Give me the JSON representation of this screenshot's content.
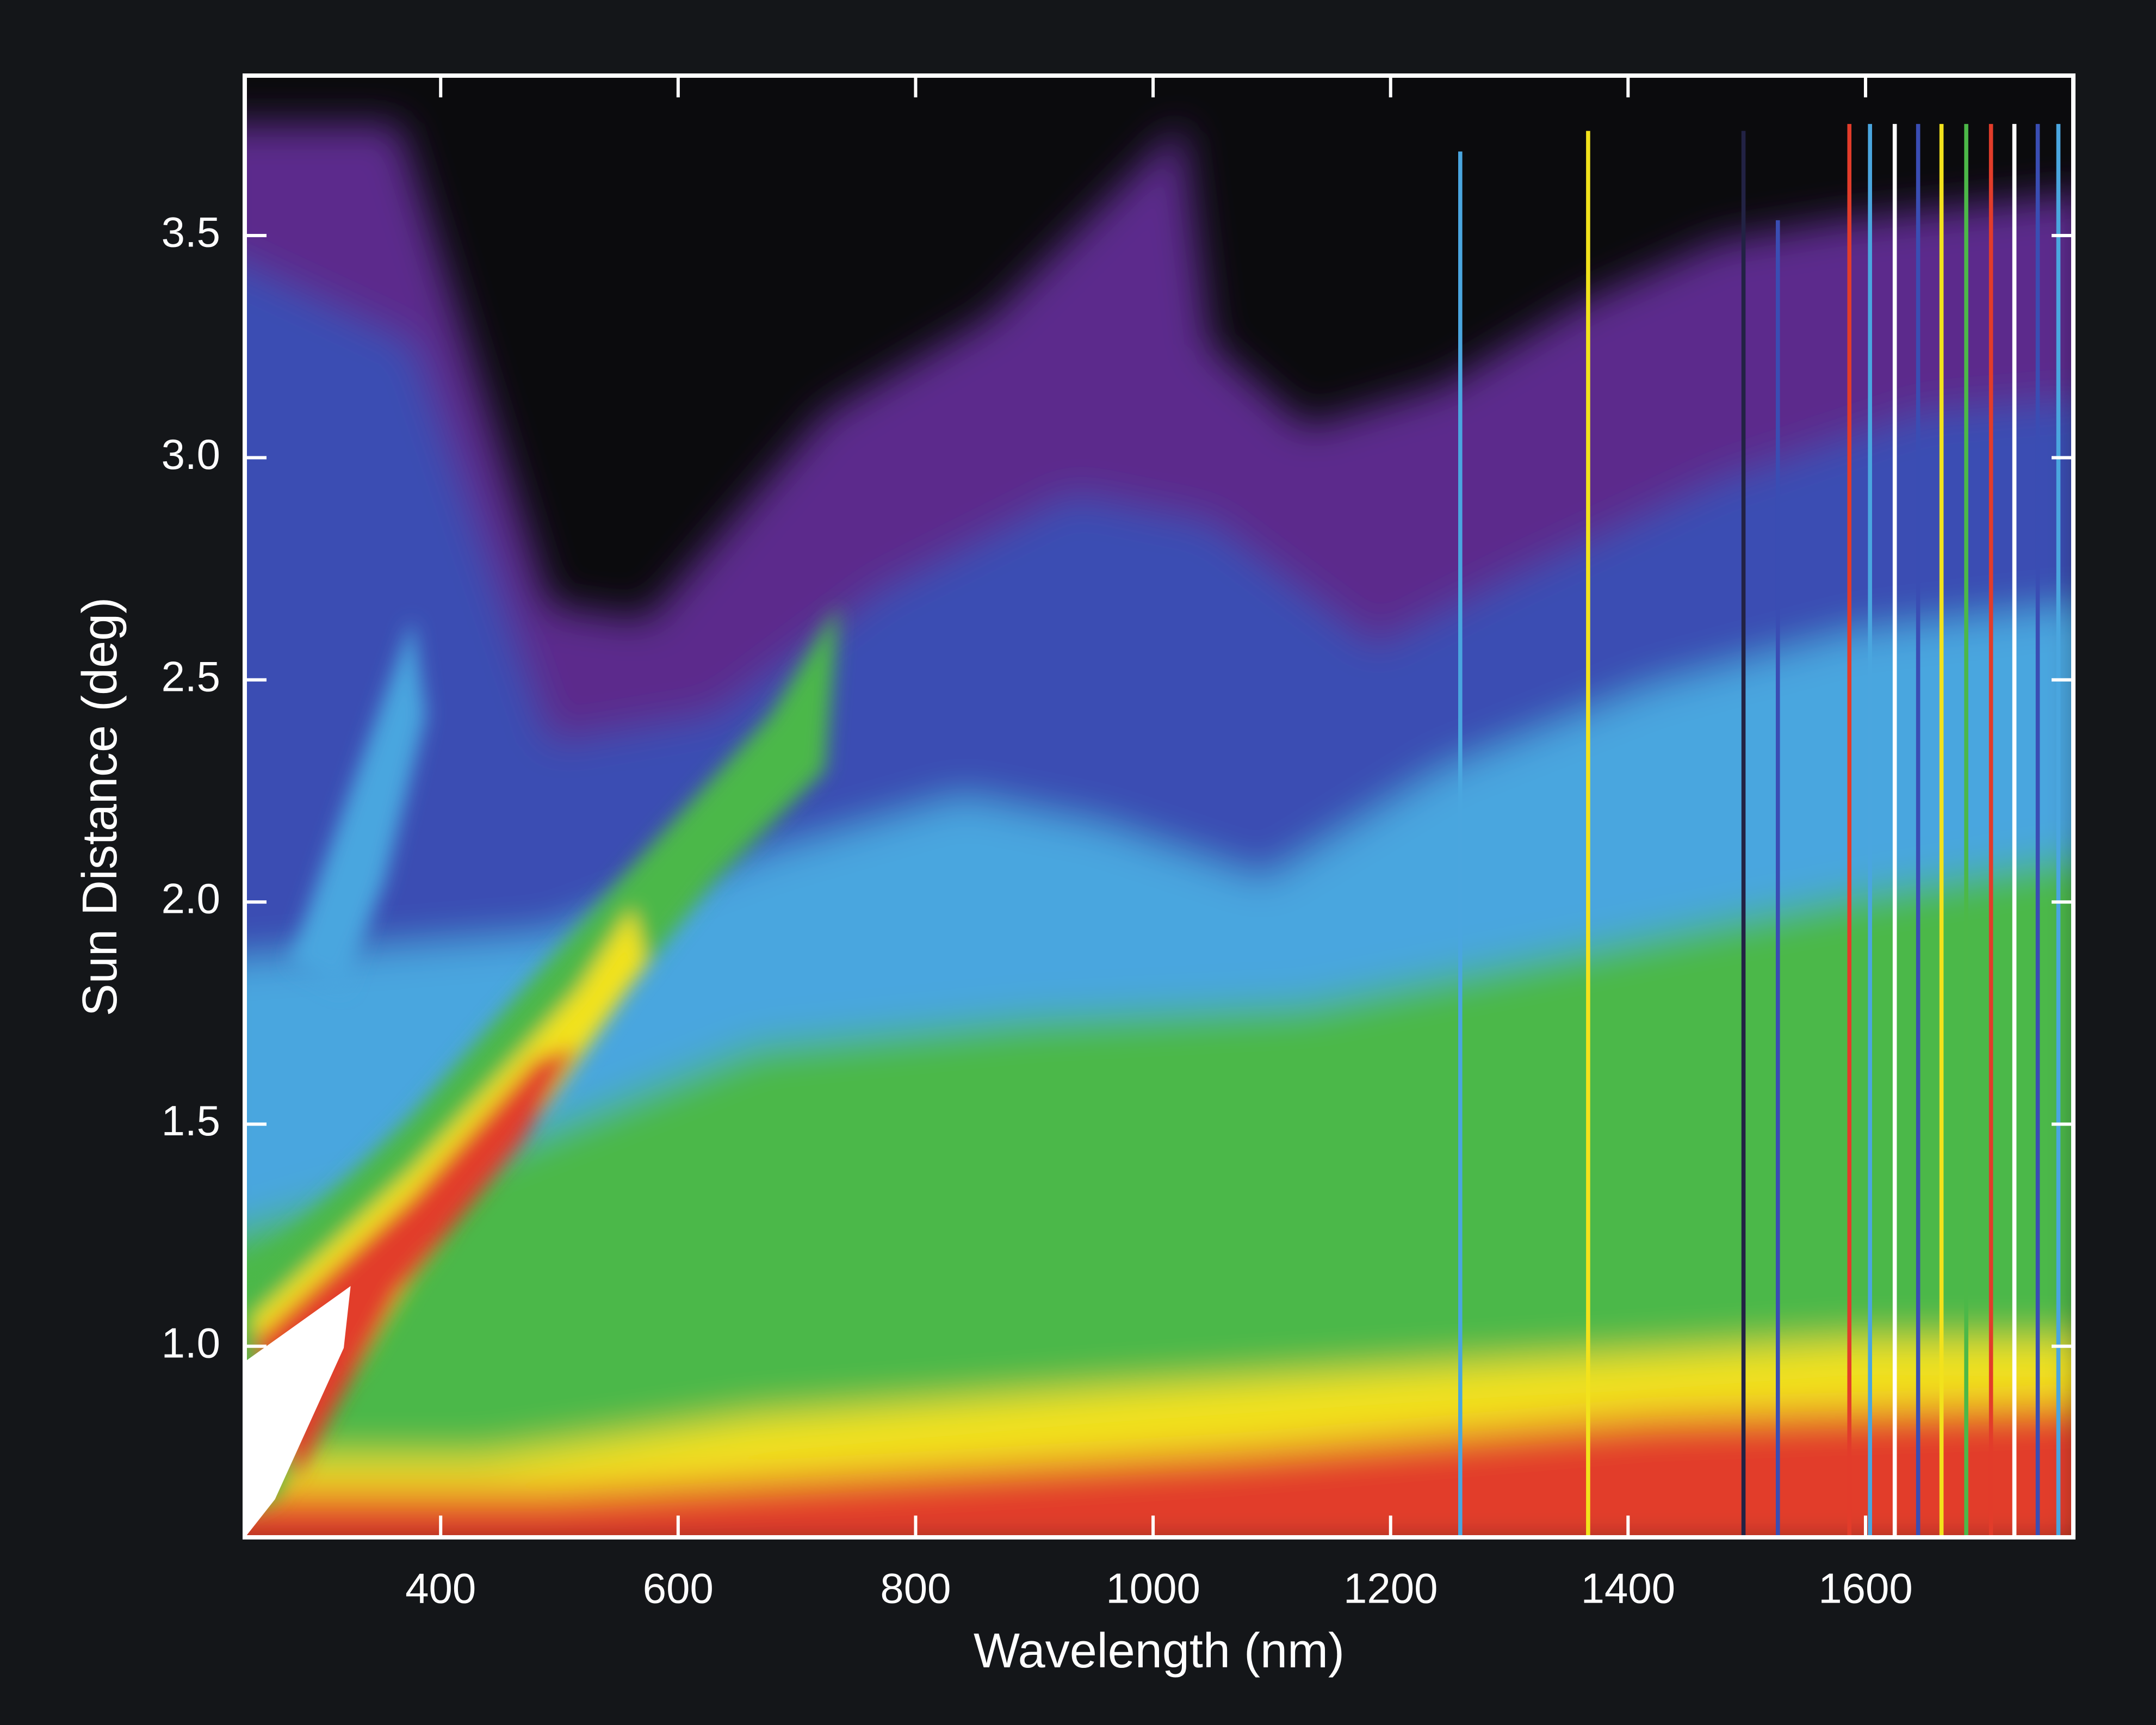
{
  "chart_data": {
    "type": "heatmap",
    "xlabel": "Wavelength (nm)",
    "ylabel": "Sun Distance (deg)",
    "xlim": [
      235,
      1775
    ],
    "ylim": [
      0.57,
      3.86
    ],
    "xticks": [
      400,
      600,
      800,
      1000,
      1200,
      1400,
      1600
    ],
    "yticks": [
      {
        "value": 1,
        "label": "1.0"
      },
      1.5,
      {
        "value": 2,
        "label": "2.0"
      },
      2.5,
      {
        "value": 3,
        "label": "3.0"
      },
      3.5
    ]
  }
}
